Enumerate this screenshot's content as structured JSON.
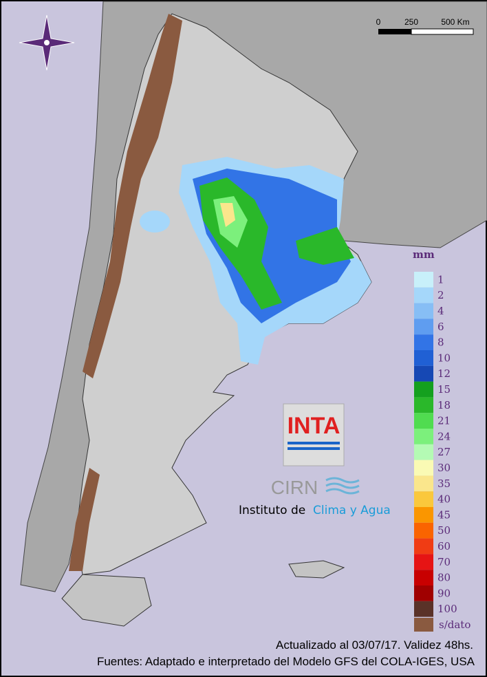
{
  "scale": {
    "labels": [
      "0",
      "250",
      "500 Km"
    ]
  },
  "legend": {
    "title": "mm",
    "items": [
      {
        "label": 1,
        "color": "#c8f0fa"
      },
      {
        "label": 2,
        "color": "#a5d7fa"
      },
      {
        "label": 4,
        "color": "#87bef5"
      },
      {
        "label": 6,
        "color": "#5f9df0"
      },
      {
        "label": 8,
        "color": "#3274e6"
      },
      {
        "label": 10,
        "color": "#2060d4"
      },
      {
        "label": 12,
        "color": "#1648b4"
      },
      {
        "label": 15,
        "color": "#14a01e"
      },
      {
        "label": 18,
        "color": "#2ab82a"
      },
      {
        "label": 21,
        "color": "#50dc50"
      },
      {
        "label": 24,
        "color": "#7cf07c"
      },
      {
        "label": 27,
        "color": "#b4fab4"
      },
      {
        "label": 30,
        "color": "#fafab4"
      },
      {
        "label": 35,
        "color": "#fae68c"
      },
      {
        "label": 40,
        "color": "#fac83c"
      },
      {
        "label": 45,
        "color": "#fa9600"
      },
      {
        "label": 50,
        "color": "#fa6400"
      },
      {
        "label": 60,
        "color": "#f03c14"
      },
      {
        "label": 70,
        "color": "#e61414"
      },
      {
        "label": 80,
        "color": "#c80000"
      },
      {
        "label": 90,
        "color": "#a00000"
      },
      {
        "label": 100,
        "color": "#5a3228"
      }
    ],
    "no_data": "s/dato"
  },
  "logo": {
    "inta": "INTA",
    "cirn": "CIRN",
    "institute": "Instituto de",
    "institute_highlight": "Clima y Agua"
  },
  "footer": {
    "updated": "Actualizado al 03/07/17. Validez 48hs.",
    "sources": "Fuentes: Adaptado e interpretado del Modelo GFS del COLA-IGES, USA"
  }
}
